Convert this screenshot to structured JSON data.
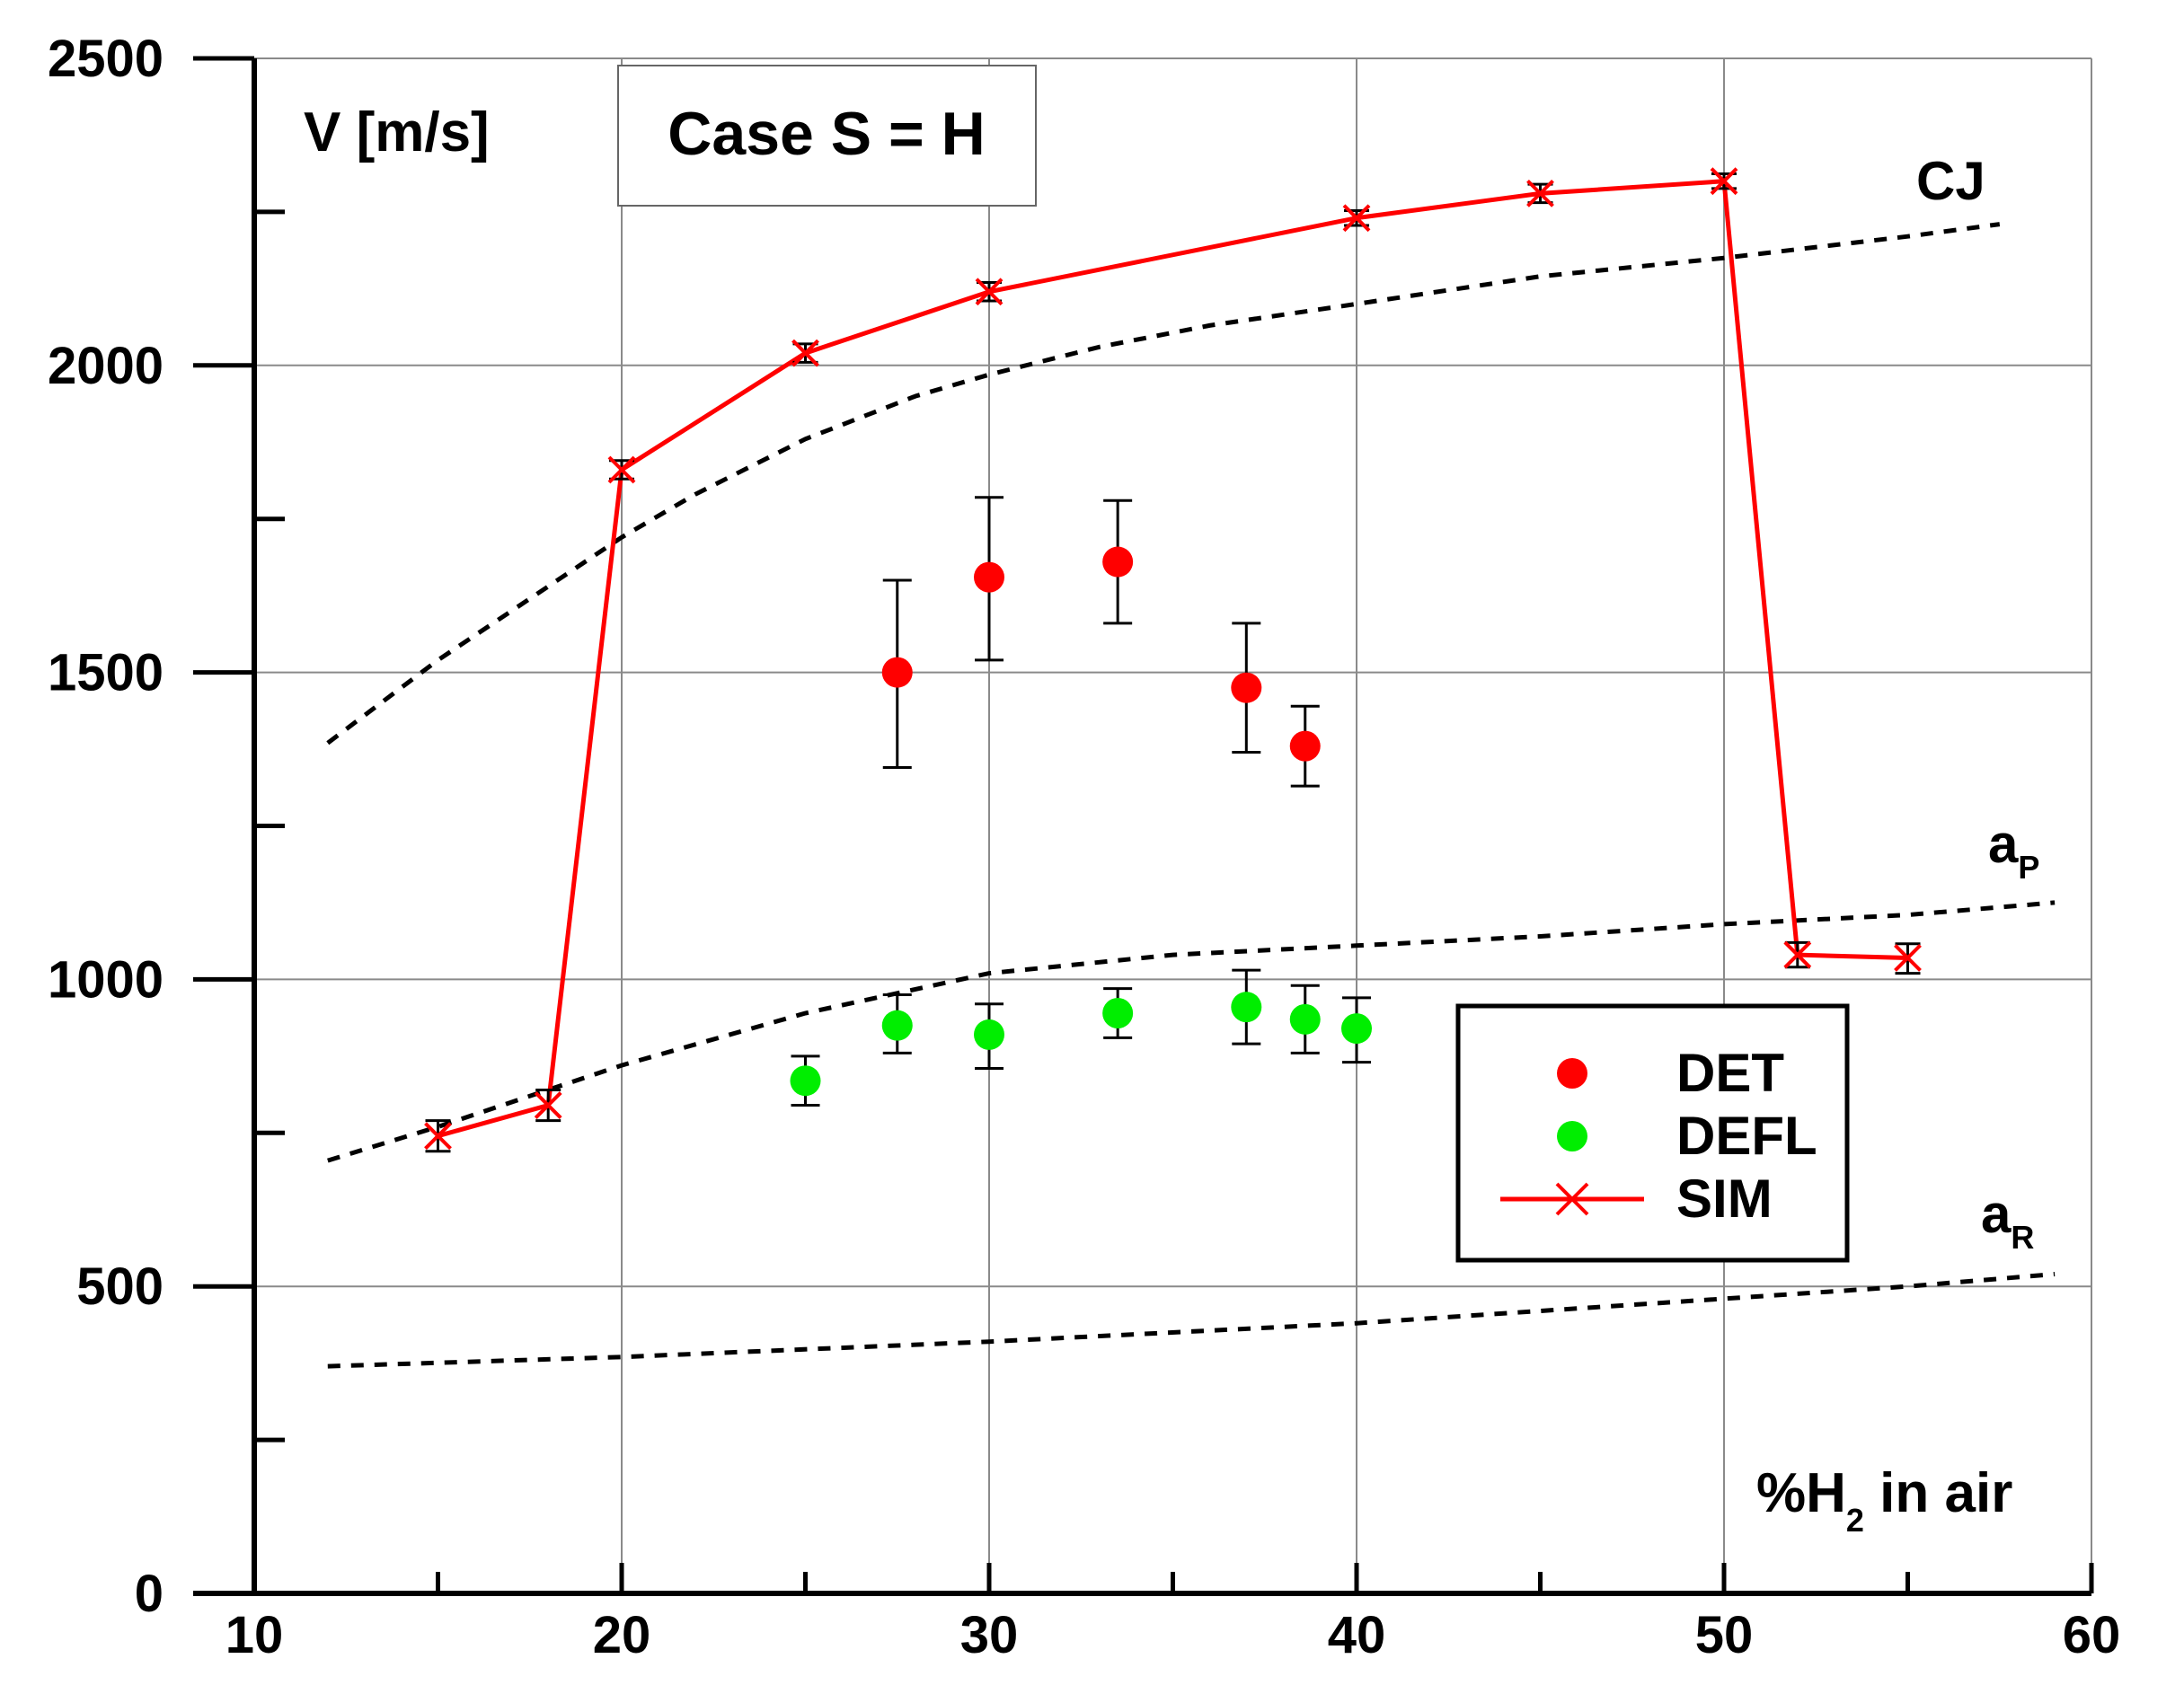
{
  "chart_data": {
    "type": "scatter",
    "title_box": "Case S = H",
    "ylabel": "V [m/s]",
    "xlabel": {
      "prefix": "%H",
      "sub": "2",
      "suffix": " in air"
    },
    "xlim": [
      10,
      60
    ],
    "ylim": [
      0,
      2500
    ],
    "x_ticks": [
      10,
      20,
      30,
      40,
      50,
      60
    ],
    "y_ticks": [
      0,
      500,
      1000,
      1500,
      2000,
      2500
    ],
    "grid": true,
    "colors": {
      "DET": "#ff0000",
      "DEFL": "#00ee00",
      "SIM": "#ff0000",
      "reference": "#000000"
    },
    "series": [
      {
        "name": "DET",
        "marker": "filled-circle",
        "points": [
          {
            "x": 27.5,
            "y": 1500,
            "lo": 1345,
            "hi": 1650
          },
          {
            "x": 30.0,
            "y": 1655,
            "lo": 1520,
            "hi": 1785
          },
          {
            "x": 33.5,
            "y": 1680,
            "lo": 1580,
            "hi": 1780
          },
          {
            "x": 37.0,
            "y": 1475,
            "lo": 1370,
            "hi": 1580
          },
          {
            "x": 38.6,
            "y": 1380,
            "lo": 1315,
            "hi": 1445
          }
        ]
      },
      {
        "name": "DEFL",
        "marker": "filled-circle",
        "points": [
          {
            "x": 25.0,
            "y": 835,
            "lo": 795,
            "hi": 875
          },
          {
            "x": 27.5,
            "y": 925,
            "lo": 880,
            "hi": 975
          },
          {
            "x": 30.0,
            "y": 910,
            "lo": 855,
            "hi": 960
          },
          {
            "x": 33.5,
            "y": 945,
            "lo": 905,
            "hi": 985
          },
          {
            "x": 37.0,
            "y": 955,
            "lo": 895,
            "hi": 1015
          },
          {
            "x": 38.6,
            "y": 935,
            "lo": 880,
            "hi": 990
          },
          {
            "x": 40.0,
            "y": 920,
            "lo": 865,
            "hi": 970
          }
        ]
      },
      {
        "name": "SIM",
        "marker": "x-line",
        "points": [
          {
            "x": 15.0,
            "y": 745,
            "lo": 720,
            "hi": 770
          },
          {
            "x": 18.0,
            "y": 795,
            "lo": 770,
            "hi": 820
          },
          {
            "x": 20.0,
            "y": 1830,
            "lo": 1815,
            "hi": 1845
          },
          {
            "x": 25.0,
            "y": 2020,
            "lo": 2005,
            "hi": 2035
          },
          {
            "x": 30.0,
            "y": 2120,
            "lo": 2105,
            "hi": 2135
          },
          {
            "x": 40.0,
            "y": 2240,
            "lo": 2228,
            "hi": 2252
          },
          {
            "x": 45.0,
            "y": 2280,
            "lo": 2265,
            "hi": 2295
          },
          {
            "x": 50.0,
            "y": 2300,
            "lo": 2288,
            "hi": 2312
          },
          {
            "x": 52.0,
            "y": 1040,
            "lo": 1020,
            "hi": 1060
          },
          {
            "x": 55.0,
            "y": 1035,
            "lo": 1010,
            "hi": 1058
          }
        ]
      }
    ],
    "reference_curves": [
      {
        "name": "CJ",
        "label": "CJ",
        "x": [
          12,
          15,
          18,
          20,
          22,
          25,
          28,
          30,
          33,
          36,
          40,
          45,
          50,
          55,
          57.5
        ],
        "y": [
          1385,
          1520,
          1640,
          1720,
          1790,
          1880,
          1950,
          1985,
          2030,
          2065,
          2100,
          2145,
          2175,
          2210,
          2230
        ]
      },
      {
        "name": "aP",
        "label": "a",
        "label_sub": "P",
        "x": [
          12,
          15,
          18,
          20,
          25,
          30,
          35,
          40,
          45,
          50,
          55,
          59
        ],
        "y": [
          705,
          760,
          820,
          860,
          945,
          1010,
          1040,
          1055,
          1070,
          1090,
          1105,
          1125
        ]
      },
      {
        "name": "aR",
        "label": "a",
        "label_sub": "R",
        "x": [
          12,
          20,
          30,
          40,
          45,
          50,
          55,
          59
        ],
        "y": [
          370,
          385,
          410,
          440,
          460,
          480,
          500,
          520
        ]
      }
    ],
    "legend": {
      "position": "center-right",
      "entries": [
        "DET",
        "DEFL",
        "SIM"
      ]
    }
  }
}
